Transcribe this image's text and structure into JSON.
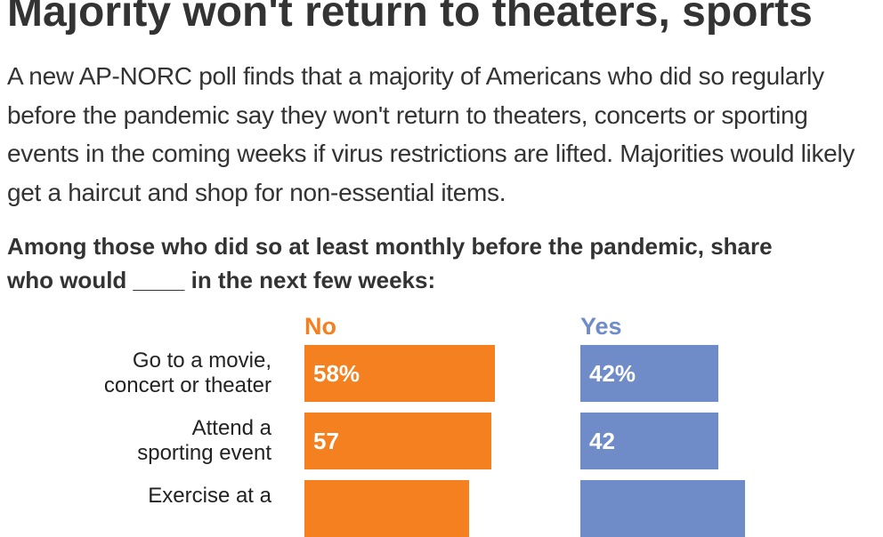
{
  "chart_data": {
    "type": "bar",
    "orientation": "horizontal",
    "title": "Majority won't return to theaters, sports",
    "subtitle": "A new AP-NORC poll finds that a majority of Americans who did so regularly before the pandemic say they won't return to theaters, concerts or sporting events in the coming weeks if virus restrictions are lifted. Majorities would likely get a haircut and shop for non-essential items.",
    "question": "Among those who did so at least monthly before the pandemic, share who would ____ in the next few weeks:",
    "categories": [
      "Go to a movie,\nconcert or theater",
      "Attend a\nsporting event",
      "Exercise at a"
    ],
    "series": [
      {
        "name": "No",
        "color": "#f5801f",
        "values": [
          58,
          57,
          50
        ],
        "value_labels": [
          "58%",
          "57",
          null
        ]
      },
      {
        "name": "Yes",
        "color": "#6f8cc8",
        "values": [
          42,
          42,
          50
        ],
        "value_labels": [
          "42%",
          "42",
          null
        ]
      }
    ]
  }
}
